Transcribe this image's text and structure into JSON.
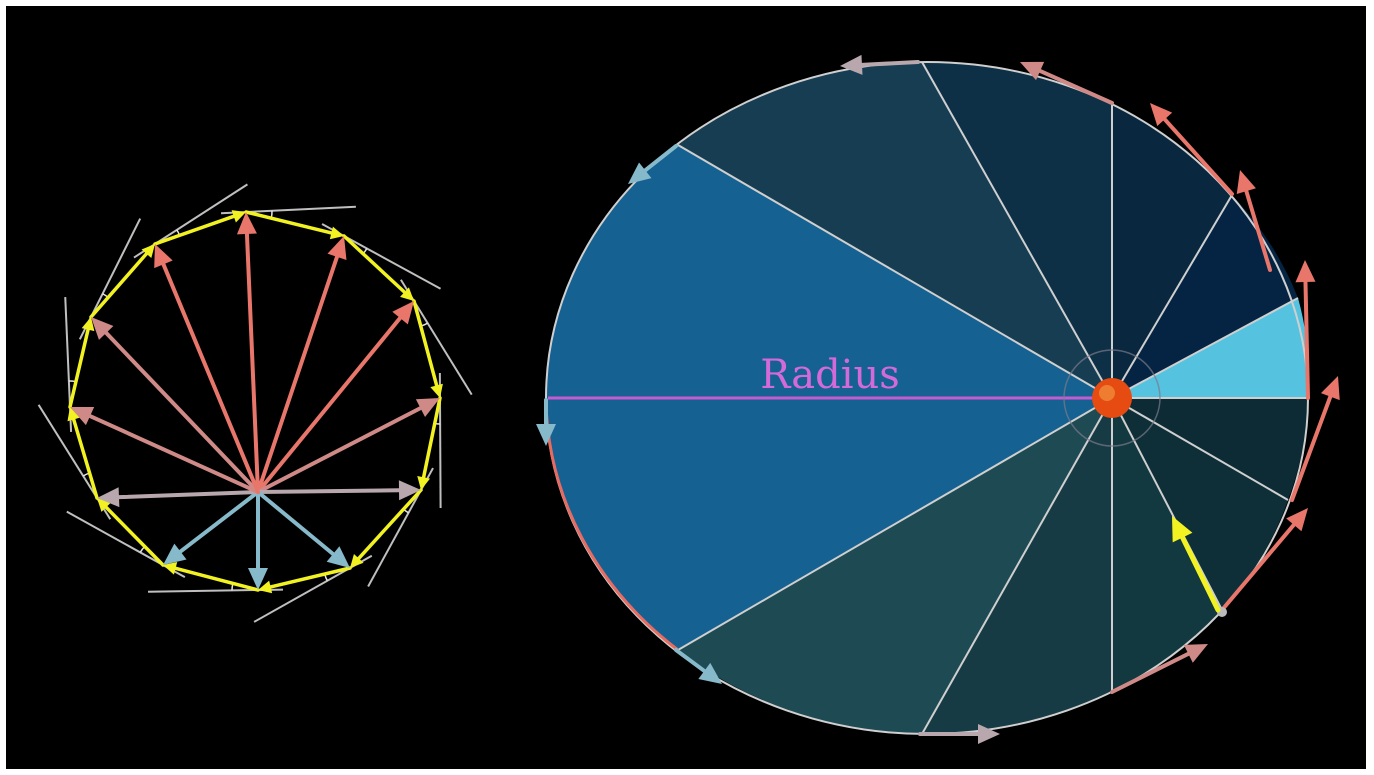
{
  "labels": {
    "radius": "Radius"
  },
  "colors": {
    "background": "#000000",
    "frame": "#ffffff",
    "polygon": "#f2f222",
    "arrow_red": "#e8766b",
    "arrow_pink": "#cf8a87",
    "arrow_gray": "#b9a7ae",
    "arrow_blue": "#86b9c9",
    "tangent": "#bfbfbf",
    "radius_line": "#c55bd0",
    "radius_text": "#d46ad9",
    "sun": "#e64b12",
    "orbit": "#cfcfcf",
    "arc_highlight": "#e86b62",
    "velocity_now": "#f2f222"
  },
  "left_diagram": {
    "arrow_groups": [
      "red",
      "red",
      "red",
      "red",
      "red",
      "pink",
      "pink",
      "gray",
      "gray",
      "blue",
      "blue",
      "blue"
    ]
  },
  "right_diagram": {
    "wedge_fills": [
      "#063050",
      "#052443",
      "#09273f",
      "#0e3047",
      "#173d53",
      "#55c3df",
      "#1f4b56",
      "#1e4a54",
      "#173b44",
      "#123840",
      "#0e2f38",
      "#0c2b35",
      "#146192"
    ]
  }
}
